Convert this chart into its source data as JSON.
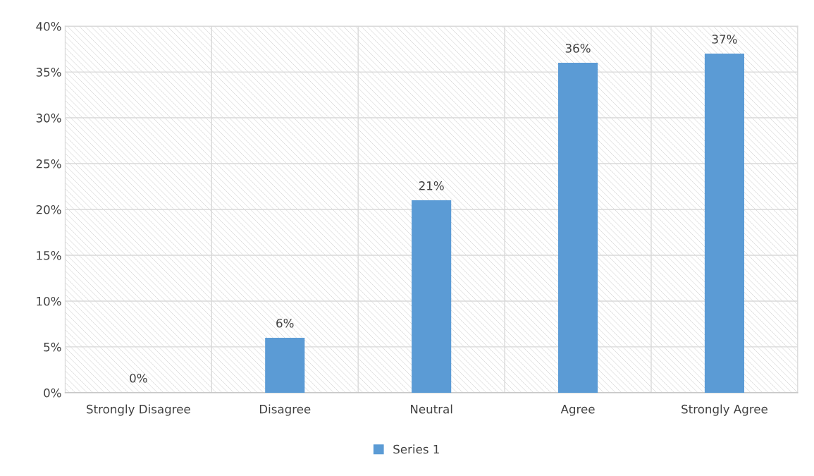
{
  "chart_data": {
    "type": "bar",
    "categories": [
      "Strongly Disagree",
      "Disagree",
      "Neutral",
      "Agree",
      "Strongly Agree"
    ],
    "series": [
      {
        "name": "Series 1",
        "color": "#5b9bd5",
        "values": [
          0,
          6,
          21,
          36,
          37
        ],
        "value_labels": [
          "0%",
          "6%",
          "21%",
          "36%",
          "37%"
        ]
      }
    ],
    "ylim": [
      0,
      40
    ],
    "yticks": [
      {
        "value": 0,
        "label": "0%"
      },
      {
        "value": 5,
        "label": "5%"
      },
      {
        "value": 10,
        "label": "10%"
      },
      {
        "value": 15,
        "label": "15%"
      },
      {
        "value": 20,
        "label": "20%"
      },
      {
        "value": 25,
        "label": "25%"
      },
      {
        "value": 30,
        "label": "30%"
      },
      {
        "value": 35,
        "label": "35%"
      },
      {
        "value": 40,
        "label": "40%"
      }
    ],
    "grid": true,
    "legend": "bottom"
  }
}
